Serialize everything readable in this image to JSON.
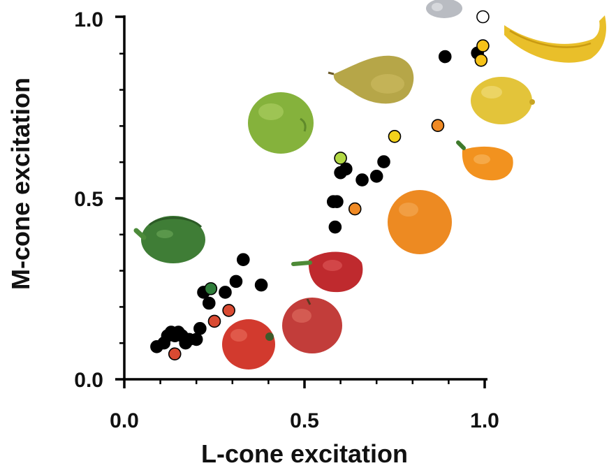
{
  "chart_data": {
    "type": "scatter",
    "xlabel": "L-cone excitation",
    "ylabel": "M-cone excitation",
    "xlim": [
      0.0,
      1.0
    ],
    "ylim": [
      0.0,
      1.0
    ],
    "xticks": [
      "0.0",
      "0.5",
      "1.0"
    ],
    "yticks": [
      "0.0",
      "0.5",
      "1.0"
    ],
    "grid": false,
    "series": [
      {
        "color": "#000000",
        "points": [
          [
            0.09,
            0.09
          ],
          [
            0.11,
            0.1
          ],
          [
            0.12,
            0.12
          ],
          [
            0.13,
            0.13
          ],
          [
            0.14,
            0.12
          ],
          [
            0.15,
            0.13
          ],
          [
            0.16,
            0.12
          ],
          [
            0.17,
            0.1
          ],
          [
            0.18,
            0.11
          ],
          [
            0.2,
            0.11
          ],
          [
            0.21,
            0.14
          ],
          [
            0.22,
            0.24
          ],
          [
            0.235,
            0.21
          ],
          [
            0.28,
            0.24
          ],
          [
            0.31,
            0.27
          ],
          [
            0.33,
            0.33
          ],
          [
            0.38,
            0.26
          ],
          [
            0.58,
            0.49
          ],
          [
            0.585,
            0.42
          ],
          [
            0.59,
            0.49
          ],
          [
            0.6,
            0.57
          ],
          [
            0.615,
            0.58
          ],
          [
            0.66,
            0.55
          ],
          [
            0.7,
            0.56
          ],
          [
            0.72,
            0.6
          ],
          [
            0.89,
            0.89
          ],
          [
            0.98,
            0.9
          ]
        ]
      },
      {
        "color": "#d94a32",
        "points": [
          [
            0.14,
            0.07
          ],
          [
            0.25,
            0.16
          ],
          [
            0.29,
            0.19
          ]
        ]
      },
      {
        "color": "#2f7d3a",
        "points": [
          [
            0.24,
            0.25
          ]
        ]
      },
      {
        "color": "#b2d844",
        "points": [
          [
            0.6,
            0.61
          ]
        ]
      },
      {
        "color": "#f08a24",
        "points": [
          [
            0.64,
            0.47
          ],
          [
            0.87,
            0.7
          ]
        ]
      },
      {
        "color": "#f4d21c",
        "points": [
          [
            0.75,
            0.67
          ]
        ]
      },
      {
        "color": "#f6c218",
        "points": [
          [
            0.99,
            0.88
          ],
          [
            0.995,
            0.92
          ]
        ]
      },
      {
        "color": "#ffffff",
        "points": [
          [
            0.995,
            1.0
          ]
        ]
      }
    ]
  }
}
